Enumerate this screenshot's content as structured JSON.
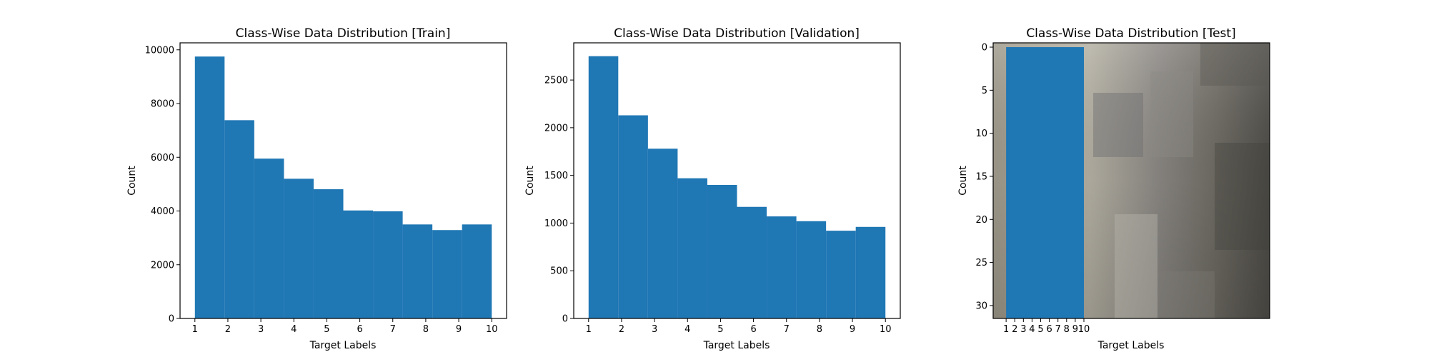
{
  "chart_data": [
    {
      "type": "bar",
      "title": "Class-Wise Data Distribution [Train]",
      "xlabel": "Target Labels",
      "ylabel": "Count",
      "categories": [
        "1",
        "2",
        "3",
        "4",
        "5",
        "6",
        "7",
        "8",
        "9",
        "10"
      ],
      "x_ticks": [
        "1",
        "2",
        "3",
        "4",
        "5",
        "6",
        "7",
        "8",
        "9",
        "10"
      ],
      "y_ticks": [
        "0",
        "2000",
        "4000",
        "6000",
        "8000",
        "10000"
      ],
      "values": [
        9750,
        7380,
        5950,
        5200,
        4810,
        4020,
        3990,
        3500,
        3290,
        3500
      ],
      "xlim": [
        0.55,
        10.45
      ],
      "ylim": [
        0,
        10260
      ],
      "bar_color": "#1f77b4",
      "grid": false
    },
    {
      "type": "bar",
      "title": "Class-Wise Data Distribution [Validation]",
      "xlabel": "Target Labels",
      "ylabel": "Count",
      "categories": [
        "1",
        "2",
        "3",
        "4",
        "5",
        "6",
        "7",
        "8",
        "9",
        "10"
      ],
      "x_ticks": [
        "1",
        "2",
        "3",
        "4",
        "5",
        "6",
        "7",
        "8",
        "9",
        "10"
      ],
      "y_ticks": [
        "0",
        "500",
        "1000",
        "1500",
        "2000",
        "2500"
      ],
      "values": [
        2750,
        2130,
        1780,
        1470,
        1400,
        1170,
        1070,
        1020,
        920,
        960
      ],
      "xlim": [
        0.55,
        10.45
      ],
      "ylim": [
        0,
        2890
      ],
      "bar_color": "#1f77b4",
      "grid": false
    },
    {
      "type": "bar",
      "title": "Class-Wise Data Distribution [Test]",
      "xlabel": "Target Labels",
      "ylabel": "Count",
      "categories": [
        "1",
        "2",
        "3",
        "4",
        "5",
        "6",
        "7",
        "8",
        "9",
        "10"
      ],
      "x_ticks": [
        "1",
        "2",
        "3",
        "4",
        "5",
        "6",
        "7",
        "8",
        "9",
        "10"
      ],
      "y_ticks": [
        "0",
        "5",
        "10",
        "15",
        "20",
        "25",
        "30"
      ],
      "y_tick_values": [
        0,
        5,
        10,
        15,
        20,
        25,
        30
      ],
      "ylim": [
        31.5,
        -0.5
      ],
      "xlim": [
        -0.5,
        31.5
      ],
      "bar_range_x": [
        1,
        10
      ],
      "bar_range_y": [
        0,
        31.5
      ],
      "bar_color": "#1f77b4",
      "background": "grayscale image",
      "grid": false
    }
  ]
}
